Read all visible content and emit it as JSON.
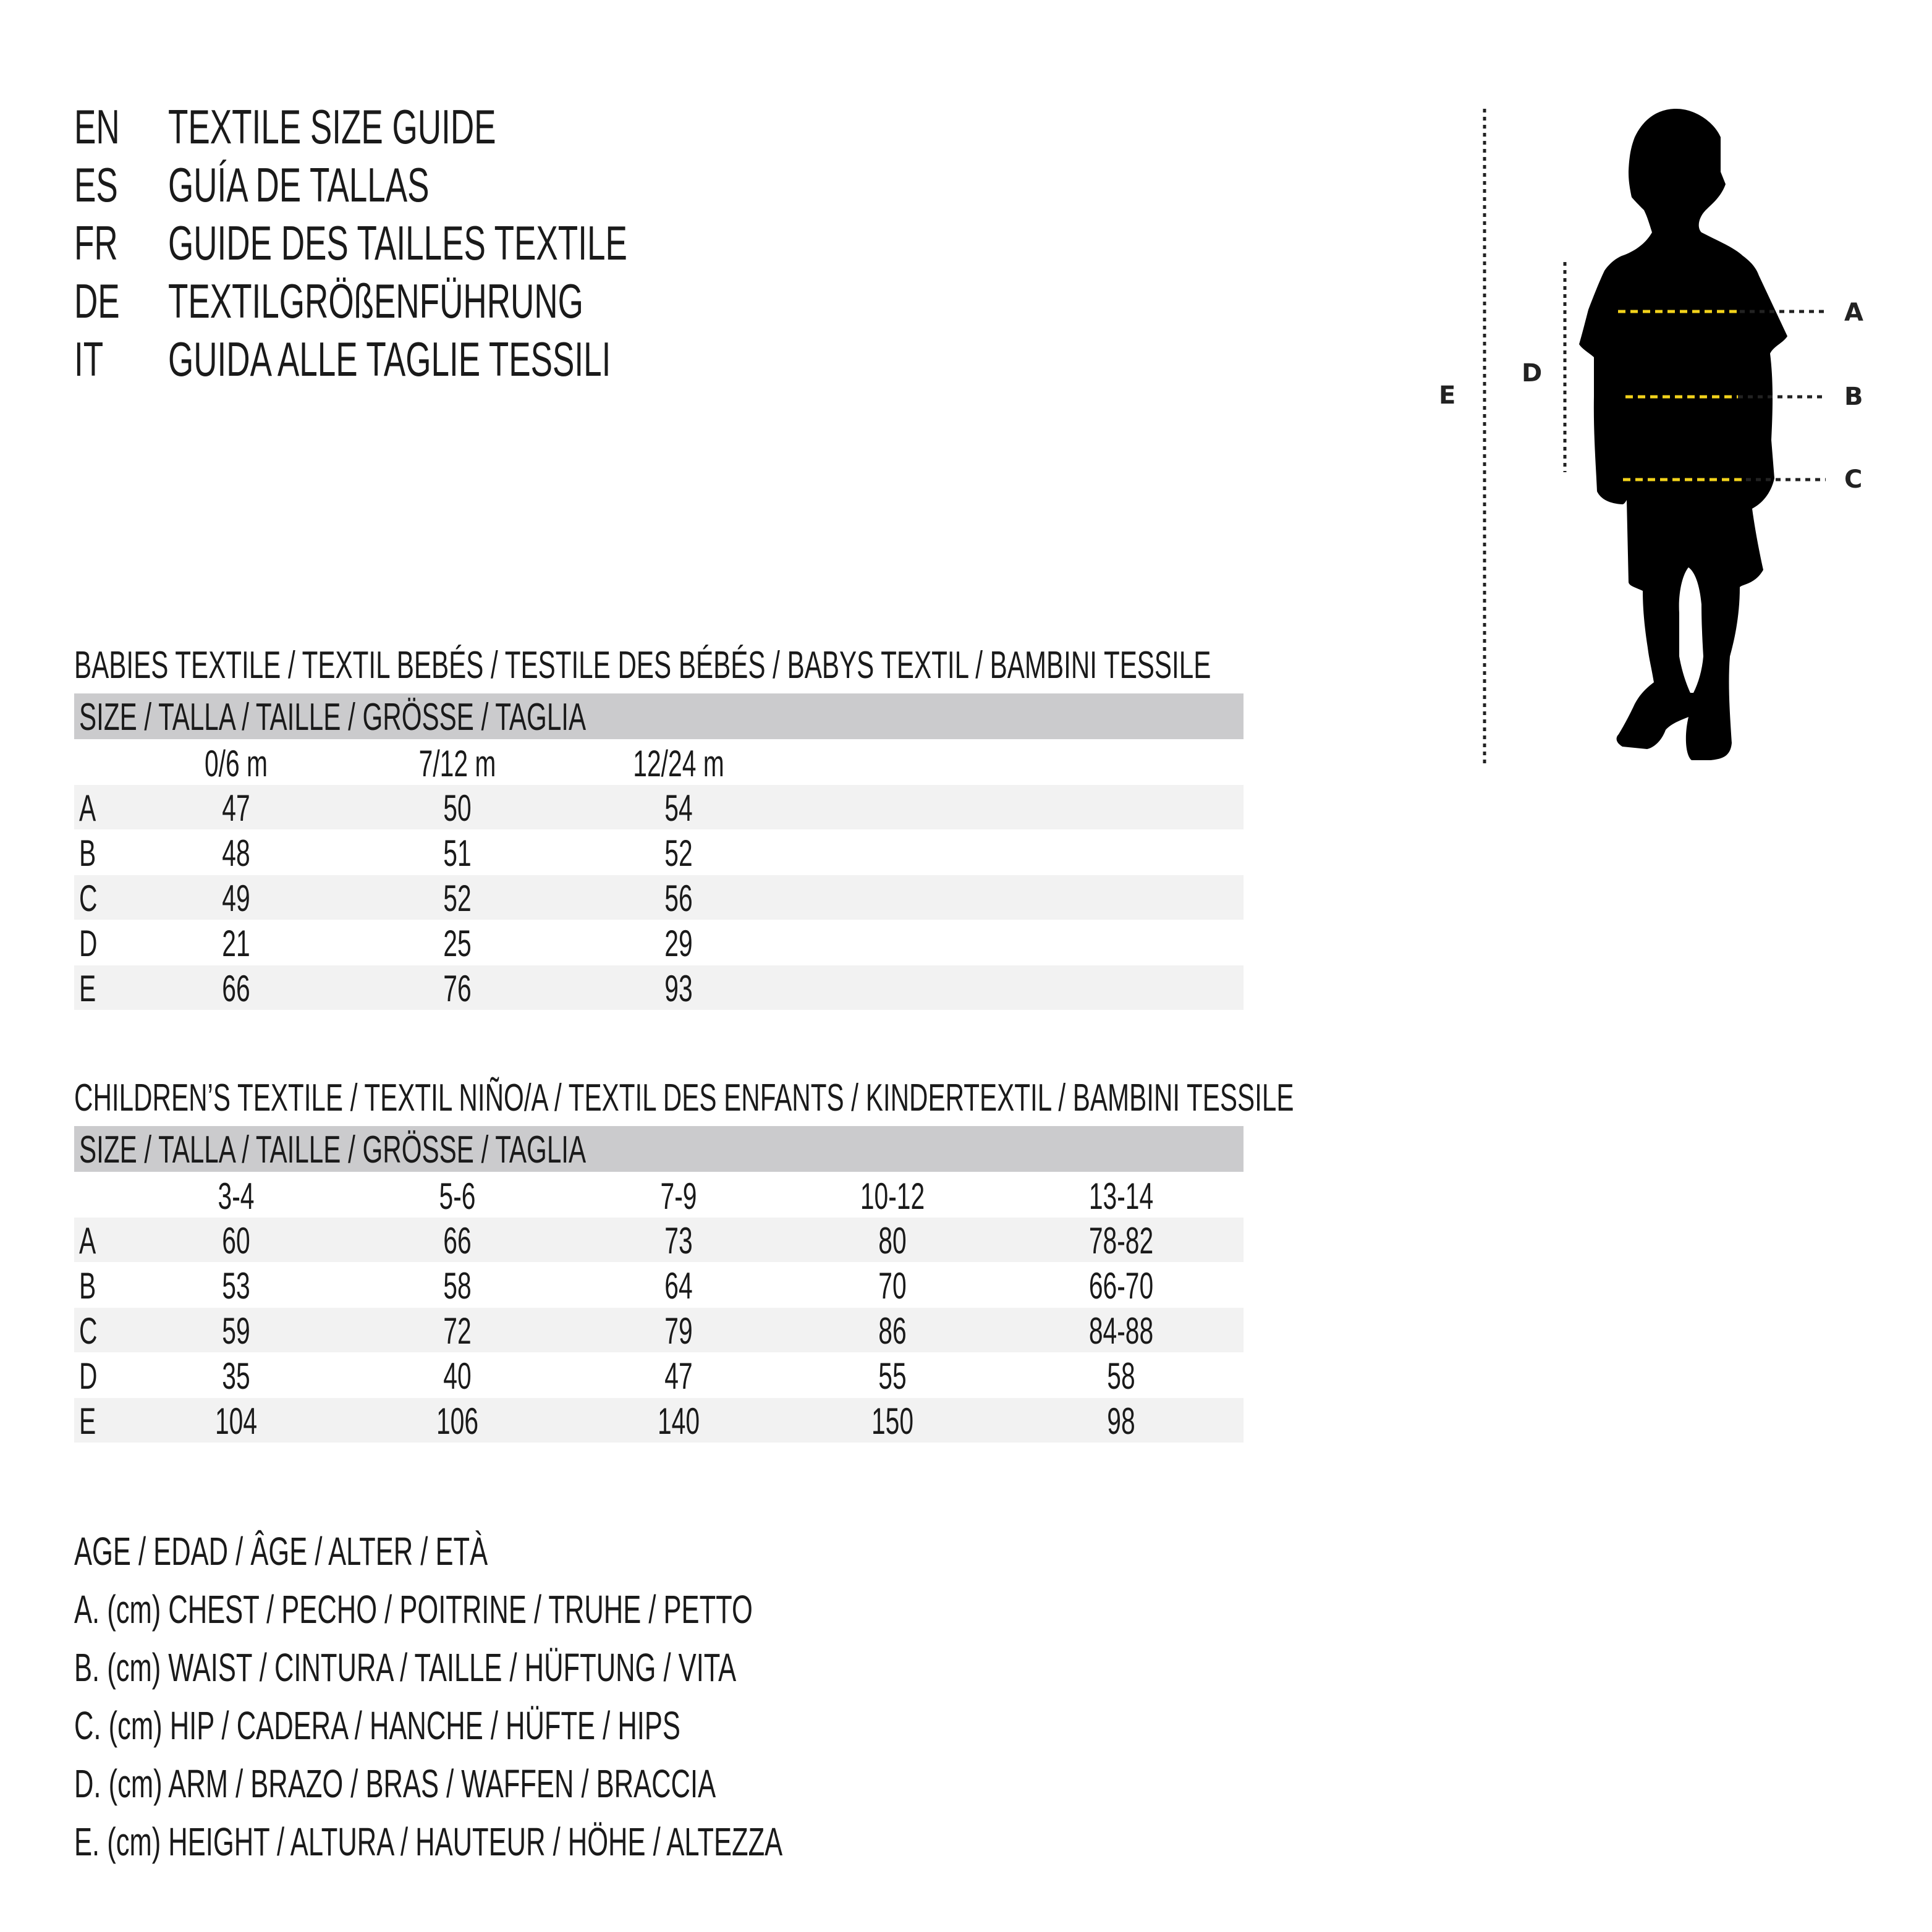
{
  "titles": [
    {
      "code": "EN",
      "text": "TEXTILE SIZE GUIDE"
    },
    {
      "code": "ES",
      "text": "GUÍA DE TALLAS"
    },
    {
      "code": "FR",
      "text": "GUIDE DES TAILLES TEXTILE"
    },
    {
      "code": "DE",
      "text": "TEXTILGRÖßENFÜHRUNG"
    },
    {
      "code": "IT",
      "text": "GUIDA ALLE TAGLIE TESSILI"
    }
  ],
  "babies": {
    "heading": "BABIES TEXTILE / TEXTIL BEBÉS / TESTILE DES BÉBÉS / BABYS TEXTIL / BAMBINI TESSILE",
    "size_header": "SIZE / TALLA / TAILLE / GRÖSSE / TAGLIA",
    "columns": [
      "0/6 m",
      "7/12 m",
      "12/24 m"
    ],
    "rows": [
      {
        "label": "A",
        "values": [
          "47",
          "50",
          "54"
        ]
      },
      {
        "label": "B",
        "values": [
          "48",
          "51",
          "52"
        ]
      },
      {
        "label": "C",
        "values": [
          "49",
          "52",
          "56"
        ]
      },
      {
        "label": "D",
        "values": [
          "21",
          "25",
          "29"
        ]
      },
      {
        "label": "E",
        "values": [
          "66",
          "76",
          "93"
        ]
      }
    ]
  },
  "children": {
    "heading": "CHILDREN’S TEXTILE / TEXTIL NIÑO/A / TEXTIL DES ENFANTS / KINDERTEXTIL / BAMBINI TESSILE",
    "size_header": "SIZE / TALLA / TAILLE / GRÖSSE / TAGLIA",
    "columns": [
      "3-4",
      "5-6",
      "7-9",
      "10-12",
      "13-14"
    ],
    "rows": [
      {
        "label": "A",
        "values": [
          "60",
          "66",
          "73",
          "80",
          "78-82"
        ]
      },
      {
        "label": "B",
        "values": [
          "53",
          "58",
          "64",
          "70",
          "66-70"
        ]
      },
      {
        "label": "C",
        "values": [
          "59",
          "72",
          "79",
          "86",
          "84-88"
        ]
      },
      {
        "label": "D",
        "values": [
          "35",
          "40",
          "47",
          "55",
          "58"
        ]
      },
      {
        "label": "E",
        "values": [
          "104",
          "106",
          "140",
          "150",
          "98"
        ]
      }
    ]
  },
  "legend": [
    "AGE / EDAD / ÂGE / ALTER / ETÀ",
    "A. (cm) CHEST / PECHO / POITRINE / TRUHE / PETTO",
    "B. (cm) WAIST / CINTURA / TAILLE / HÜFTUNG / VITA",
    "C. (cm) HIP / CADERA / HANCHE / HÜFTE / HIPS",
    "D. (cm) ARM / BRAZO / BRAS / WAFFEN / BRACCIA",
    "E. (cm) HEIGHT / ALTURA / HAUTEUR / HÖHE / ALTEZZA"
  ],
  "figure": {
    "labels": {
      "a": "A",
      "b": "B",
      "c": "C",
      "d": "D",
      "e": "E"
    },
    "measure_line_color": "#f2d21b",
    "silhouette_color": "#000000"
  }
}
